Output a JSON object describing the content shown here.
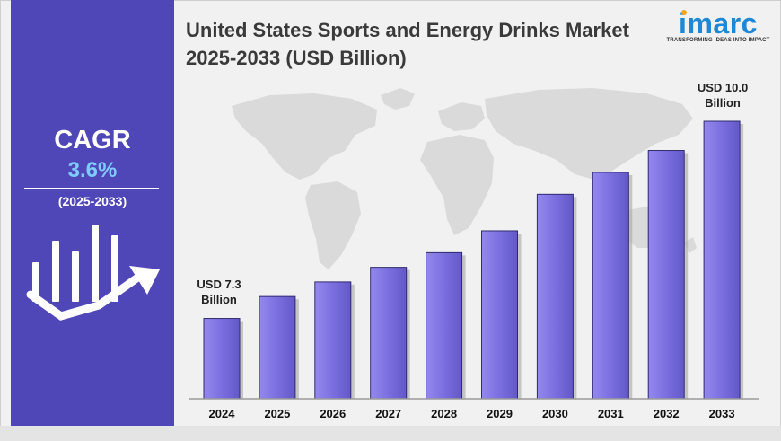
{
  "title": "United States Sports and Energy Drinks Market 2025-2033 (USD Billion)",
  "brand": {
    "name": "imarc",
    "tagline": "TRANSFORMING IDEAS INTO IMPACT",
    "color": "#1d88d6",
    "dot_color": "#f4a11b"
  },
  "cagr": {
    "label": "CAGR",
    "value": "3.6%",
    "period": "(2025-2033)"
  },
  "panel_color": "#4f46b7",
  "icons": [
    "growth-chart-icon",
    "world-map-background"
  ],
  "annotations": {
    "start": "USD 7.3 Billion",
    "end": "USD 10.0 Billion"
  },
  "chart_data": {
    "type": "bar",
    "title": "United States Sports and Energy Drinks Market 2025-2033 (USD Billion)",
    "categories": [
      "2024",
      "2025",
      "2026",
      "2027",
      "2028",
      "2029",
      "2030",
      "2031",
      "2032",
      "2033"
    ],
    "values": [
      7.3,
      7.6,
      7.8,
      8.0,
      8.2,
      8.5,
      9.0,
      9.3,
      9.6,
      10.0
    ],
    "axis_range": [
      6.2,
      10.0
    ],
    "bar_color": "#7b6fe0",
    "grid": false,
    "legend": "none"
  }
}
